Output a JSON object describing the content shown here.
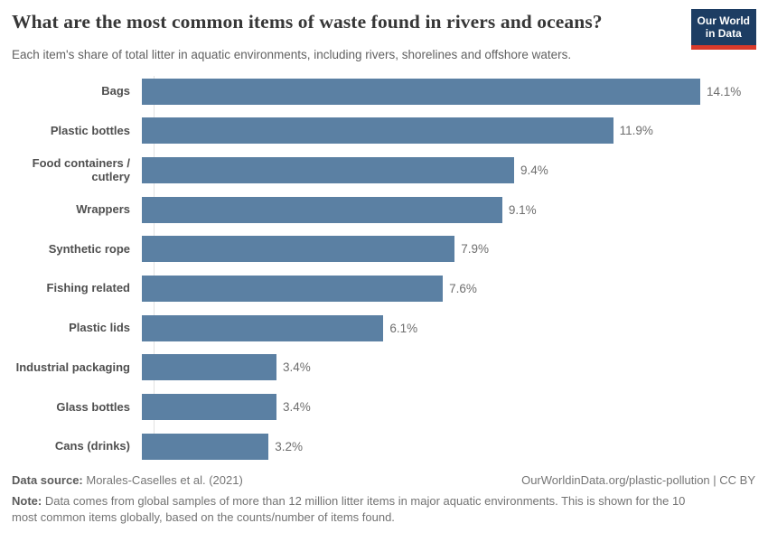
{
  "header": {
    "title": "What are the most common items of waste found in rivers and oceans?",
    "subtitle": "Each item's share of total litter in aquatic environments, including rivers, shorelines and offshore waters.",
    "logo": {
      "line1": "Our World",
      "line2": "in Data"
    }
  },
  "chart_data": {
    "type": "bar",
    "orientation": "horizontal",
    "categories": [
      "Bags",
      "Plastic bottles",
      "Food containers / cutlery",
      "Wrappers",
      "Synthetic rope",
      "Fishing related",
      "Plastic lids",
      "Industrial packaging",
      "Glass bottles",
      "Cans (drinks)"
    ],
    "values": [
      14.1,
      11.9,
      9.4,
      9.1,
      7.9,
      7.6,
      6.1,
      3.4,
      3.4,
      3.2
    ],
    "value_labels": [
      "14.1%",
      "11.9%",
      "9.4%",
      "9.1%",
      "7.9%",
      "7.6%",
      "6.1%",
      "3.4%",
      "3.4%",
      "3.2%"
    ],
    "title": "What are the most common items of waste found in rivers and oceans?",
    "xlabel": "",
    "ylabel": "",
    "xlim": [
      0,
      14.1
    ],
    "unit": "%",
    "grid": false,
    "legend": "none",
    "bar_color": "#5b80a3"
  },
  "footer": {
    "source_label": "Data source:",
    "source_value": " Morales-Caselles et al. (2021)",
    "link_text": "OurWorldinData.org/plastic-pollution | CC BY",
    "note_label": "Note:",
    "note_value": " Data comes from global samples of more than 12 million litter items in major aquatic environments. This is shown for the 10 most common items globally, based on the counts/number of items found."
  },
  "colors": {
    "bar": "#5b80a3",
    "logo_background": "#1d3d63",
    "logo_accent": "#d93a2b",
    "axis_line": "#e2e2e2"
  }
}
